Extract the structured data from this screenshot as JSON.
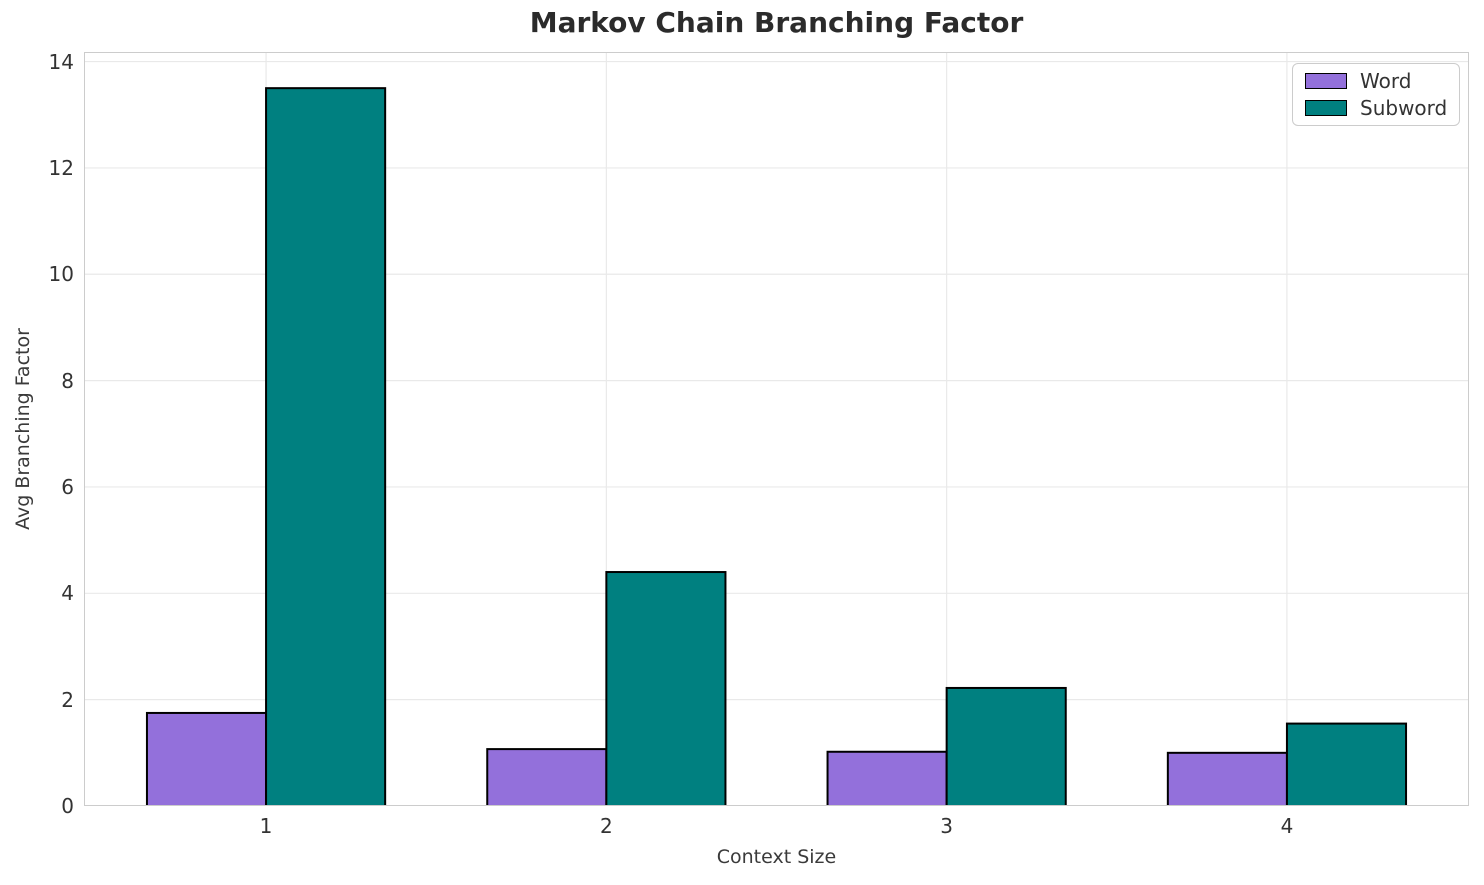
{
  "title": "Markov Chain Branching Factor",
  "chart_data": {
    "type": "bar",
    "title": "Markov Chain Branching Factor",
    "categories": [
      "1",
      "2",
      "3",
      "4"
    ],
    "series": [
      {
        "name": "Word",
        "color": "#9370DB",
        "values": [
          1.75,
          1.07,
          1.02,
          1.0
        ]
      },
      {
        "name": "Subword",
        "color": "#008080",
        "values": [
          13.5,
          4.4,
          2.22,
          1.55
        ]
      }
    ],
    "xlabel": "Context Size",
    "ylabel": "Avg Branching Factor",
    "ylim": [
      0,
      14.18
    ],
    "yticks": [
      0,
      2,
      4,
      6,
      8,
      10,
      12,
      14
    ],
    "grid": true,
    "grid_color": "#e9e9e9",
    "bar_edge_color": "#000000",
    "bar_width": 0.35,
    "legend_position": "upper right",
    "background": "#ffffff"
  }
}
